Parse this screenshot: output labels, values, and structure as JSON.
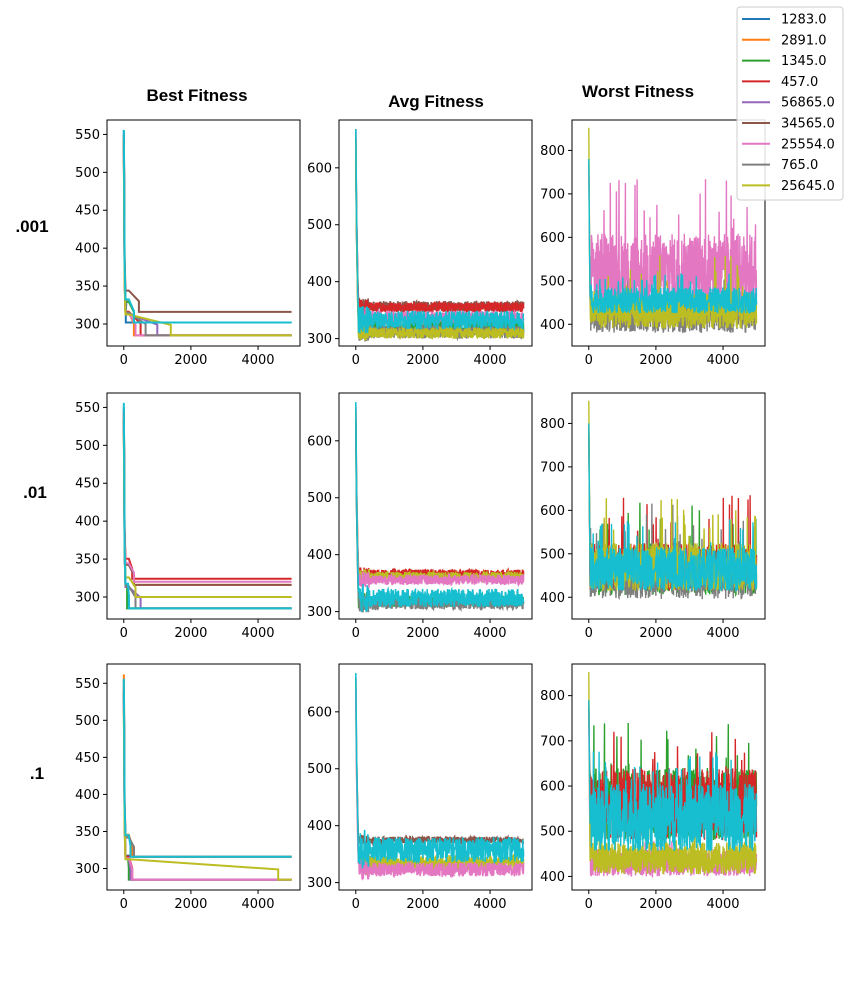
{
  "figure": {
    "column_titles": [
      "Best Fitness",
      "Avg Fitness",
      "Worst Fitness"
    ],
    "row_labels": [
      ".001",
      ".01",
      ".1"
    ],
    "legend": {
      "placement": "top-right",
      "entries": [
        {
          "label": "1283.0",
          "color": "#1f77b4"
        },
        {
          "label": "2891.0",
          "color": "#ff7f0e"
        },
        {
          "label": "1345.0",
          "color": "#2ca02c"
        },
        {
          "label": "457.0",
          "color": "#d62728"
        },
        {
          "label": "56865.0",
          "color": "#9467bd"
        },
        {
          "label": "34565.0",
          "color": "#8c564b"
        },
        {
          "label": "25554.0",
          "color": "#e377c2"
        },
        {
          "label": "765.0",
          "color": "#7f7f7f"
        },
        {
          "label": "25645.0",
          "color": "#bcbd22"
        }
      ]
    }
  },
  "chart_data": [
    {
      "type": "line",
      "id": "best-001",
      "metric": "Best Fitness",
      "row": ".001",
      "xlim": [
        -500,
        5250
      ],
      "ylim": [
        271,
        569
      ],
      "xticks": [
        0,
        2000,
        4000
      ],
      "xtick_labels": [
        "0",
        "2000",
        "4000"
      ],
      "yticks": [
        300,
        350,
        400,
        450,
        500,
        550
      ],
      "ytick_labels": [
        "300",
        "350",
        "400",
        "450",
        "500",
        "550"
      ],
      "series": [
        {
          "color": "#1f77b4",
          "start": 555,
          "final": 302,
          "conv": 60
        },
        {
          "color": "#ff7f0e",
          "start": 540,
          "final": 285,
          "conv": 300
        },
        {
          "color": "#2ca02c",
          "start": 530,
          "final": 302,
          "conv": 300
        },
        {
          "color": "#d62728",
          "start": 545,
          "final": 285,
          "conv": 500
        },
        {
          "color": "#9467bd",
          "start": 520,
          "final": 285,
          "conv": 1000
        },
        {
          "color": "#8c564b",
          "start": 550,
          "final": 316,
          "conv": 450
        },
        {
          "color": "#e377c2",
          "start": 525,
          "final": 285,
          "conv": 350
        },
        {
          "color": "#7f7f7f",
          "start": 535,
          "final": 285,
          "conv": 650
        },
        {
          "color": "#bcbd22",
          "start": 515,
          "final": 285,
          "conv": 1400
        },
        {
          "color": "#17becf",
          "start": 556,
          "final": 302,
          "conv": 300
        }
      ]
    },
    {
      "type": "line",
      "id": "avg-001",
      "metric": "Avg Fitness",
      "row": ".001",
      "xlim": [
        -500,
        5250
      ],
      "ylim": [
        287,
        684
      ],
      "xticks": [
        0,
        2000,
        4000
      ],
      "xtick_labels": [
        "0",
        "2000",
        "4000"
      ],
      "yticks": [
        300,
        400,
        500,
        600
      ],
      "ytick_labels": [
        "300",
        "400",
        "500",
        "600"
      ],
      "series": [
        {
          "color": "#8c564b",
          "start": 668,
          "center": 357,
          "amp": 9,
          "drop": 150,
          "conv": 60
        },
        {
          "color": "#d62728",
          "start": 650,
          "center": 355,
          "amp": 9,
          "drop": 150,
          "conv": 60
        },
        {
          "color": "#e377c2",
          "start": 640,
          "center": 336,
          "amp": 13,
          "drop": 150,
          "conv": 60
        },
        {
          "color": "#2ca02c",
          "start": 635,
          "center": 318,
          "amp": 12,
          "drop": 150,
          "conv": 60
        },
        {
          "color": "#7f7f7f",
          "start": 630,
          "center": 312,
          "amp": 12,
          "drop": 150,
          "conv": 60
        },
        {
          "color": "#bcbd22",
          "start": 645,
          "center": 310,
          "amp": 10,
          "drop": 150,
          "conv": 60
        },
        {
          "color": "#17becf",
          "start": 668,
          "center": 333,
          "amp": 16,
          "drop": 150,
          "conv": 60
        }
      ]
    },
    {
      "type": "line",
      "id": "worst-001",
      "metric": "Worst Fitness",
      "row": ".001",
      "xlim": [
        -500,
        5250
      ],
      "ylim": [
        350,
        870
      ],
      "xticks": [
        0,
        2000,
        4000
      ],
      "xtick_labels": [
        "0",
        "2000",
        "4000"
      ],
      "yticks": [
        400,
        500,
        600,
        700,
        800
      ],
      "ytick_labels": [
        "400",
        "500",
        "600",
        "700",
        "800"
      ],
      "series": [
        {
          "color": "#7f7f7f",
          "start": 780,
          "center": 420,
          "amp": 40,
          "spikes": 520
        },
        {
          "color": "#e377c2",
          "start": 760,
          "center": 520,
          "amp": 90,
          "spikes": 740
        },
        {
          "color": "#bcbd22",
          "start": 852,
          "center": 430,
          "amp": 40,
          "spikes": 560
        },
        {
          "color": "#17becf",
          "start": 780,
          "center": 455,
          "amp": 30,
          "spikes": 520
        }
      ]
    },
    {
      "type": "line",
      "id": "best-01",
      "metric": "Best Fitness",
      "row": ".01",
      "xlim": [
        -500,
        5250
      ],
      "ylim": [
        271,
        569
      ],
      "xticks": [
        0,
        2000,
        4000
      ],
      "xtick_labels": [
        "0",
        "2000",
        "4000"
      ],
      "yticks": [
        300,
        350,
        400,
        450,
        500,
        550
      ],
      "ytick_labels": [
        "300",
        "350",
        "400",
        "450",
        "500",
        "550"
      ],
      "series": [
        {
          "color": "#1f77b4",
          "start": 550,
          "final": 285,
          "conv": 150
        },
        {
          "color": "#ff7f0e",
          "start": 540,
          "final": 316,
          "conv": 300
        },
        {
          "color": "#2ca02c",
          "start": 530,
          "final": 285,
          "conv": 100
        },
        {
          "color": "#d62728",
          "start": 545,
          "final": 324,
          "conv": 250
        },
        {
          "color": "#9467bd",
          "start": 520,
          "final": 285,
          "conv": 500
        },
        {
          "color": "#8c564b",
          "start": 535,
          "final": 316,
          "conv": 300
        },
        {
          "color": "#e377c2",
          "start": 525,
          "final": 320,
          "conv": 300
        },
        {
          "color": "#7f7f7f",
          "start": 530,
          "final": 285,
          "conv": 350
        },
        {
          "color": "#bcbd22",
          "start": 515,
          "final": 300,
          "conv": 350
        },
        {
          "color": "#17becf",
          "start": 556,
          "final": 285,
          "conv": 150
        }
      ]
    },
    {
      "type": "line",
      "id": "avg-01",
      "metric": "Avg Fitness",
      "row": ".01",
      "xlim": [
        -500,
        5250
      ],
      "ylim": [
        287,
        684
      ],
      "xticks": [
        0,
        2000,
        4000
      ],
      "xtick_labels": [
        "0",
        "2000",
        "4000"
      ],
      "yticks": [
        300,
        400,
        500,
        600
      ],
      "ytick_labels": [
        "300",
        "400",
        "500",
        "600"
      ],
      "series": [
        {
          "color": "#d62728",
          "start": 660,
          "center": 368,
          "amp": 6,
          "drop": 150,
          "conv": 60
        },
        {
          "color": "#bcbd22",
          "start": 650,
          "center": 362,
          "amp": 8,
          "drop": 150,
          "conv": 60
        },
        {
          "color": "#e377c2",
          "start": 640,
          "center": 356,
          "amp": 9,
          "drop": 150,
          "conv": 60
        },
        {
          "color": "#2ca02c",
          "start": 635,
          "center": 318,
          "amp": 10,
          "drop": 150,
          "conv": 60
        },
        {
          "color": "#7f7f7f",
          "start": 630,
          "center": 314,
          "amp": 10,
          "drop": 150,
          "conv": 60
        },
        {
          "color": "#17becf",
          "start": 668,
          "center": 324,
          "amp": 16,
          "drop": 150,
          "conv": 60
        }
      ]
    },
    {
      "type": "line",
      "id": "worst-01",
      "metric": "Worst Fitness",
      "row": ".01",
      "xlim": [
        -500,
        5250
      ],
      "ylim": [
        350,
        870
      ],
      "xticks": [
        0,
        2000,
        4000
      ],
      "xtick_labels": [
        "0",
        "2000",
        "4000"
      ],
      "yticks": [
        400,
        500,
        600,
        700,
        800
      ],
      "ytick_labels": [
        "400",
        "500",
        "600",
        "700",
        "800"
      ],
      "series": [
        {
          "color": "#2ca02c",
          "start": 780,
          "center": 460,
          "amp": 55,
          "spikes": 620
        },
        {
          "color": "#d62728",
          "start": 800,
          "center": 470,
          "amp": 55,
          "spikes": 640
        },
        {
          "color": "#7f7f7f",
          "start": 790,
          "center": 450,
          "amp": 55,
          "spikes": 620
        },
        {
          "color": "#bcbd22",
          "start": 852,
          "center": 470,
          "amp": 55,
          "spikes": 630
        },
        {
          "color": "#17becf",
          "start": 800,
          "center": 465,
          "amp": 50,
          "spikes": 580
        }
      ]
    },
    {
      "type": "line",
      "id": "best-1",
      "metric": "Best Fitness",
      "row": ".1",
      "xlim": [
        -500,
        5250
      ],
      "ylim": [
        271,
        576
      ],
      "xticks": [
        0,
        2000,
        4000
      ],
      "xtick_labels": [
        "0",
        "2000",
        "4000"
      ],
      "yticks": [
        300,
        350,
        400,
        450,
        500,
        550
      ],
      "ytick_labels": [
        "300",
        "350",
        "400",
        "450",
        "500",
        "550"
      ],
      "series": [
        {
          "color": "#1f77b4",
          "start": 555,
          "final": 285,
          "conv": 200
        },
        {
          "color": "#ff7f0e",
          "start": 562,
          "final": 316,
          "conv": 250
        },
        {
          "color": "#2ca02c",
          "start": 540,
          "final": 285,
          "conv": 150
        },
        {
          "color": "#d62728",
          "start": 545,
          "final": 285,
          "conv": 250
        },
        {
          "color": "#9467bd",
          "start": 520,
          "final": 285,
          "conv": 200
        },
        {
          "color": "#8c564b",
          "start": 535,
          "final": 316,
          "conv": 300
        },
        {
          "color": "#e377c2",
          "start": 525,
          "final": 285,
          "conv": 250
        },
        {
          "color": "#7f7f7f",
          "start": 530,
          "final": 316,
          "conv": 300
        },
        {
          "color": "#bcbd22",
          "start": 515,
          "final": 285,
          "conv": 4600
        },
        {
          "color": "#17becf",
          "start": 556,
          "final": 316,
          "conv": 200
        }
      ]
    },
    {
      "type": "line",
      "id": "avg-1",
      "metric": "Avg Fitness",
      "row": ".1",
      "xlim": [
        -500,
        5250
      ],
      "ylim": [
        287,
        684
      ],
      "xticks": [
        0,
        2000,
        4000
      ],
      "xtick_labels": [
        "0",
        "2000",
        "4000"
      ],
      "yticks": [
        300,
        400,
        500,
        600
      ],
      "ytick_labels": [
        "300",
        "400",
        "500",
        "600"
      ],
      "series": [
        {
          "color": "#8c564b",
          "start": 660,
          "center": 375,
          "amp": 6,
          "drop": 150,
          "conv": 60
        },
        {
          "color": "#bcbd22",
          "start": 650,
          "center": 335,
          "amp": 14,
          "drop": 150,
          "conv": 60
        },
        {
          "color": "#e377c2",
          "start": 640,
          "center": 323,
          "amp": 12,
          "drop": 150,
          "conv": 60
        },
        {
          "color": "#17becf",
          "start": 668,
          "center": 358,
          "amp": 22,
          "drop": 150,
          "conv": 60
        }
      ]
    },
    {
      "type": "line",
      "id": "worst-1",
      "metric": "Worst Fitness",
      "row": ".1",
      "xlim": [
        -500,
        5250
      ],
      "ylim": [
        370,
        870
      ],
      "xticks": [
        0,
        2000,
        4000
      ],
      "xtick_labels": [
        "0",
        "2000",
        "4000"
      ],
      "yticks": [
        400,
        500,
        600,
        700,
        800
      ],
      "ytick_labels": [
        "400",
        "500",
        "600",
        "700",
        "800"
      ],
      "series": [
        {
          "color": "#2ca02c",
          "start": 780,
          "center": 560,
          "amp": 80,
          "spikes": 740
        },
        {
          "color": "#d62728",
          "start": 790,
          "center": 560,
          "amp": 80,
          "spikes": 730
        },
        {
          "color": "#e377c2",
          "start": 760,
          "center": 430,
          "amp": 30,
          "spikes": 480
        },
        {
          "color": "#bcbd22",
          "start": 852,
          "center": 440,
          "amp": 35,
          "spikes": 500
        },
        {
          "color": "#17becf",
          "start": 790,
          "center": 530,
          "amp": 75,
          "spikes": 680
        }
      ]
    }
  ]
}
